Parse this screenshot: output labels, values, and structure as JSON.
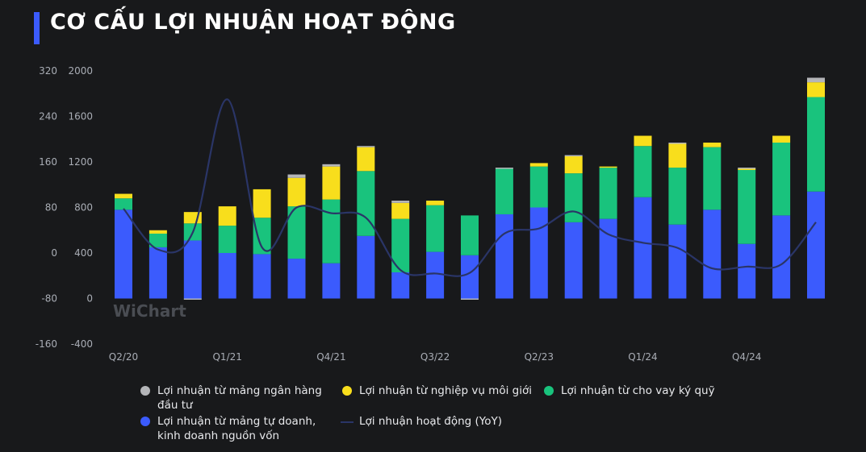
{
  "title": "CƠ CẤU LỢI NHUẬN HOẠT ĐỘNG",
  "watermark": "WiChart",
  "colors": {
    "bank": "#b4b5b8",
    "brokerage": "#f8de1c",
    "margin": "#19c37d",
    "prop": "#3b5bfd",
    "yoy": "#2a3567",
    "background": "#18191b",
    "accent": "#3b5bfd"
  },
  "legend": [
    {
      "key": "bank",
      "label": "Lợi nhuận từ mảng ngân hàng đầu tư"
    },
    {
      "key": "brokerage",
      "label": "Lợi nhuận từ nghiệp vụ môi giới"
    },
    {
      "key": "margin",
      "label": "Lợi nhuận từ cho vay ký quỹ"
    },
    {
      "key": "prop",
      "label": "Lợi nhuận từ mảng tự doanh, kinh doanh nguồn vốn"
    },
    {
      "key": "yoy",
      "label": "Lợi nhuận hoạt động (YoY)"
    }
  ],
  "chart_data": {
    "type": "bar",
    "stacked": true,
    "title": "CƠ CẤU LỢI NHUẬN HOẠT ĐỘNG",
    "categories": [
      "Q2/20",
      "Q3/20",
      "Q4/20",
      "Q1/21",
      "Q2/21",
      "Q3/21",
      "Q4/21",
      "Q1/22",
      "Q2/22",
      "Q3/22",
      "Q4/22",
      "Q1/23",
      "Q2/23",
      "Q3/23",
      "Q4/23",
      "Q1/24",
      "Q2/24",
      "Q3/24",
      "Q4/24",
      "Q1/25",
      "Q2/25"
    ],
    "x_tick_labels": [
      "Q2/20",
      "Q1/21",
      "Q4/21",
      "Q3/22",
      "Q2/23",
      "Q1/24",
      "Q4/24"
    ],
    "left_axis": {
      "ticks": [
        2000,
        1600,
        1200,
        800,
        400,
        0,
        -400
      ],
      "ylim": [
        -400,
        2000
      ]
    },
    "right_axis": {
      "ticks": [
        320,
        240,
        160,
        80,
        0,
        -80,
        -160
      ],
      "ylim": [
        -160,
        320
      ]
    },
    "series": [
      {
        "key": "prop",
        "name": "Lợi nhuận từ mảng tự doanh, kinh doanh nguồn vốn",
        "axis": "left",
        "values": [
          780,
          450,
          510,
          400,
          390,
          350,
          310,
          550,
          230,
          410,
          380,
          740,
          800,
          670,
          700,
          890,
          650,
          780,
          480,
          730,
          940
        ]
      },
      {
        "key": "margin",
        "name": "Lợi nhuận từ cho vay ký quỹ",
        "axis": "left",
        "values": [
          100,
          120,
          150,
          240,
          320,
          460,
          560,
          570,
          470,
          410,
          350,
          400,
          360,
          430,
          450,
          450,
          500,
          550,
          650,
          640,
          830
        ]
      },
      {
        "key": "brokerage",
        "name": "Lợi nhuận từ nghiệp vụ môi giới",
        "axis": "left",
        "values": [
          40,
          30,
          100,
          170,
          250,
          250,
          290,
          210,
          140,
          40,
          0,
          0,
          30,
          150,
          10,
          90,
          210,
          40,
          10,
          60,
          130
        ]
      },
      {
        "key": "bank",
        "name": "Lợi nhuận từ mảng ngân hàng đầu tư",
        "axis": "left",
        "values": [
          0,
          0,
          -10,
          0,
          0,
          30,
          20,
          10,
          20,
          0,
          -10,
          10,
          0,
          10,
          0,
          0,
          10,
          0,
          10,
          0,
          40
        ]
      },
      {
        "key": "yoy",
        "name": "Lợi nhuận hoạt động (YoY)",
        "axis": "right",
        "type": "line",
        "values": [
          78,
          6,
          36,
          270,
          10,
          80,
          70,
          62,
          -30,
          -36,
          -35,
          34,
          43,
          73,
          33,
          18,
          9,
          -27,
          -24,
          -20,
          54
        ]
      }
    ]
  }
}
